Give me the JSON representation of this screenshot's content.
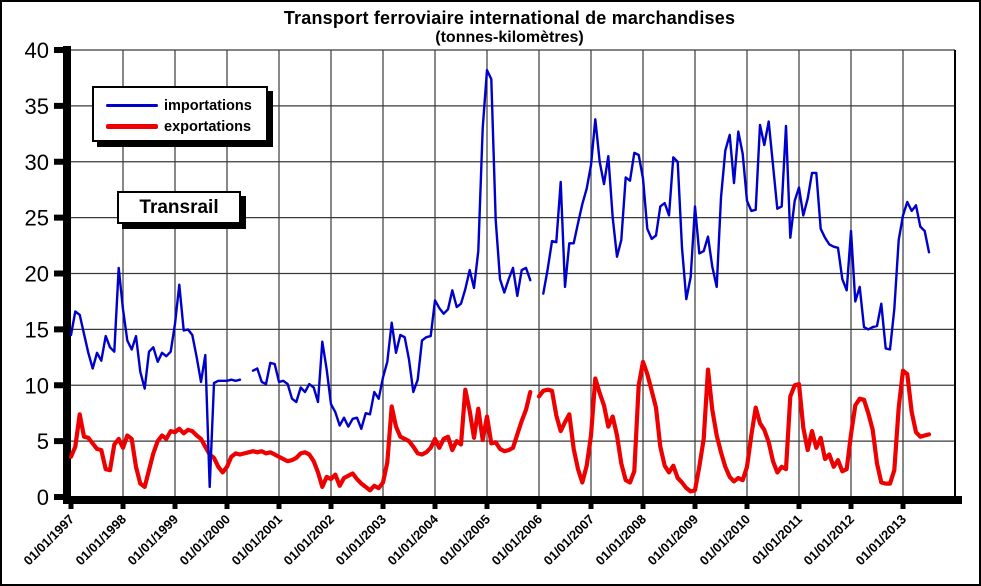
{
  "chart_data": {
    "type": "line",
    "title": "Transport ferroviaire  international  de marchandises",
    "subtitle": "(tonnes-kilomètres)",
    "annotation": "Transrail",
    "grid": true,
    "legend_position": "top-left-inside",
    "ylim": [
      0,
      40
    ],
    "y_tick_labels": [
      "0",
      "5",
      "10",
      "15",
      "20",
      "25",
      "30",
      "35",
      "40"
    ],
    "y_tick_values": [
      0,
      5,
      10,
      15,
      20,
      25,
      30,
      35,
      40
    ],
    "x_tick_labels": [
      "01/01/1997",
      "01/01/1998",
      "01/01/1999",
      "01/01/2000",
      "01/01/2001",
      "01/01/2002",
      "01/01/2003",
      "01/01/2004",
      "01/01/2005",
      "01/01/2006",
      "01/01/2007",
      "01/01/2008",
      "01/01/2009",
      "01/01/2010",
      "01/01/2011",
      "01/01/2012",
      "01/01/2013"
    ],
    "x_frequency": "monthly",
    "x_range_months": [
      "01/1997",
      "07/2013"
    ],
    "colors": {
      "importations": "#0000CC",
      "exportations": "#EE0000",
      "grid": "#3a3a3a",
      "axis": "#000000"
    },
    "legend": [
      {
        "name": "importations"
      },
      {
        "name": "exportations"
      }
    ],
    "series": [
      {
        "name": "importations",
        "color": "#0000CC",
        "width": 2.4,
        "values": [
          14.5,
          16.6,
          16.3,
          14.6,
          12.9,
          11.5,
          12.9,
          12.2,
          14.4,
          13.4,
          13.0,
          20.5,
          16.8,
          14.0,
          13.2,
          14.4,
          11.2,
          9.7,
          13.0,
          13.4,
          12.1,
          12.9,
          12.6,
          13.0,
          15.5,
          19.0,
          14.9,
          15.0,
          14.5,
          12.5,
          10.3,
          12.7,
          0.9,
          10.2,
          10.4,
          10.4,
          10.4,
          10.5,
          10.4,
          10.5,
          null,
          null,
          11.3,
          11.5,
          10.3,
          10.1,
          12.0,
          11.9,
          10.3,
          10.4,
          10.1,
          8.8,
          8.5,
          9.8,
          9.4,
          10.1,
          9.8,
          8.5,
          13.9,
          11.4,
          8.3,
          7.6,
          6.4,
          7.1,
          6.3,
          7.0,
          7.1,
          6.1,
          7.5,
          7.4,
          9.4,
          8.8,
          10.7,
          12.1,
          15.6,
          12.9,
          14.5,
          14.3,
          12.3,
          9.4,
          10.5,
          14.0,
          14.3,
          14.4,
          17.6,
          16.9,
          16.4,
          16.8,
          18.5,
          17.0,
          17.3,
          18.6,
          20.3,
          18.7,
          22.0,
          33.0,
          38.2,
          37.4,
          24.8,
          19.5,
          18.3,
          19.5,
          20.5,
          18.0,
          20.3,
          20.5,
          19.4,
          null,
          null,
          18.2,
          20.4,
          22.9,
          22.8,
          28.2,
          18.8,
          22.7,
          22.7,
          24.5,
          26.2,
          27.6,
          29.7,
          33.8,
          30.0,
          28.0,
          30.5,
          25.0,
          21.5,
          23.0,
          28.6,
          28.3,
          30.8,
          30.6,
          28.5,
          24.0,
          23.1,
          23.4,
          26.0,
          26.3,
          25.2,
          30.4,
          30.0,
          22.3,
          17.7,
          19.7,
          26.0,
          21.8,
          22.0,
          23.3,
          20.6,
          18.8,
          26.8,
          31.0,
          32.4,
          28.1,
          32.7,
          30.7,
          26.5,
          25.6,
          25.7,
          33.3,
          31.5,
          33.6,
          29.7,
          25.8,
          26.0,
          33.2,
          23.2,
          26.5,
          27.7,
          25.2,
          26.7,
          29.0,
          29.0,
          24.0,
          23.2,
          22.6,
          22.4,
          22.3,
          19.5,
          18.5,
          23.8,
          17.5,
          18.8,
          15.2,
          15.0,
          15.2,
          15.3,
          17.3,
          13.3,
          13.2,
          16.8,
          23.0,
          25.2,
          26.4,
          25.6,
          26.1,
          24.2,
          23.8,
          21.9
        ]
      },
      {
        "name": "exportations",
        "color": "#EE0000",
        "width": 4.2,
        "values": [
          3.6,
          4.5,
          7.4,
          5.4,
          5.3,
          4.8,
          4.3,
          4.2,
          2.5,
          2.4,
          4.7,
          5.2,
          4.4,
          5.5,
          5.2,
          2.7,
          1.2,
          0.9,
          2.4,
          3.9,
          5.0,
          5.5,
          5.2,
          5.9,
          5.8,
          6.1,
          5.7,
          6.0,
          5.9,
          5.5,
          5.2,
          4.5,
          3.8,
          3.5,
          2.7,
          2.2,
          2.7,
          3.6,
          3.9,
          3.8,
          3.9,
          4.0,
          4.1,
          4.0,
          4.1,
          3.9,
          4.0,
          3.8,
          3.6,
          3.4,
          3.2,
          3.3,
          3.5,
          3.9,
          4.0,
          3.8,
          3.2,
          2.2,
          0.9,
          1.8,
          1.6,
          2.0,
          1.0,
          1.7,
          1.9,
          2.1,
          1.6,
          1.2,
          0.9,
          0.6,
          1.0,
          0.8,
          1.3,
          3.1,
          8.1,
          6.3,
          5.4,
          5.2,
          5.0,
          4.5,
          3.9,
          3.8,
          4.0,
          4.4,
          5.2,
          4.4,
          5.2,
          5.4,
          4.2,
          5.0,
          4.7,
          9.6,
          7.7,
          5.3,
          7.9,
          5.1,
          7.2,
          4.8,
          4.9,
          4.3,
          4.1,
          4.2,
          4.4,
          5.6,
          6.8,
          7.8,
          9.4,
          null,
          9.0,
          9.5,
          9.6,
          9.5,
          7.3,
          5.9,
          6.7,
          7.4,
          4.3,
          2.5,
          1.3,
          2.8,
          5.5,
          10.6,
          9.3,
          8.2,
          6.3,
          7.2,
          5.5,
          3.0,
          1.5,
          1.3,
          2.3,
          10.0,
          12.1,
          11.0,
          9.5,
          8.0,
          4.5,
          2.8,
          2.2,
          2.8,
          1.7,
          1.3,
          0.8,
          0.5,
          0.6,
          2.7,
          5.2,
          11.4,
          7.8,
          5.5,
          4.0,
          2.7,
          1.8,
          1.4,
          1.7,
          1.5,
          2.7,
          5.5,
          8.0,
          6.6,
          6.0,
          4.9,
          3.2,
          2.2,
          2.7,
          2.5,
          9.0,
          10.0,
          10.1,
          6.2,
          4.2,
          5.9,
          4.4,
          5.3,
          3.4,
          3.8,
          2.7,
          3.3,
          2.3,
          2.5,
          5.6,
          8.2,
          8.8,
          8.7,
          7.5,
          6.0,
          3.0,
          1.3,
          1.2,
          1.2,
          2.4,
          8.0,
          11.3,
          11.0,
          7.6,
          5.8,
          5.4,
          5.5,
          5.6
        ]
      }
    ]
  }
}
